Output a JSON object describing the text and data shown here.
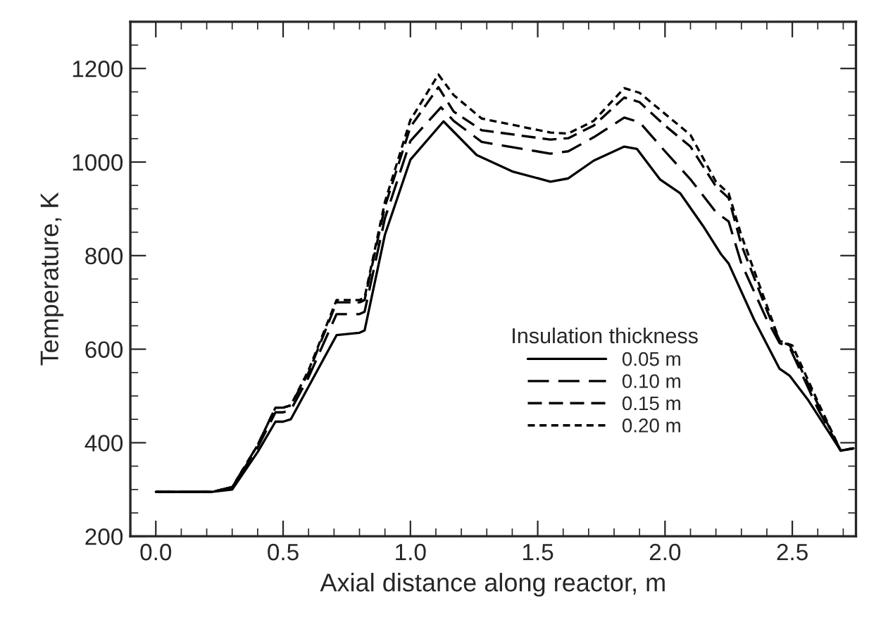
{
  "chart_data": {
    "type": "line",
    "xlabel": "Axial distance along reactor, m",
    "ylabel": "Temperature, K",
    "legend_title": "Insulation thickness",
    "legend": "right",
    "grid": false,
    "xlim": [
      -0.1,
      2.75
    ],
    "xticks": [
      {
        "value": 0,
        "label": "0.0"
      },
      0.5,
      {
        "value": 1,
        "label": "1.0"
      },
      1.5,
      {
        "value": 2,
        "label": "2.0"
      },
      2.5
    ],
    "ylim": [
      200,
      1300
    ],
    "yticks": [
      200,
      400,
      600,
      800,
      1000,
      1200
    ],
    "series": [
      {
        "name": "0.05 m",
        "color": "#000000",
        "line_style": "solid",
        "x": [
          0.0,
          0.22,
          0.3,
          0.4,
          0.47,
          0.5,
          0.53,
          0.6,
          0.71,
          0.8,
          0.82,
          0.9,
          1.0,
          1.13,
          1.26,
          1.4,
          1.55,
          1.62,
          1.72,
          1.84,
          1.89,
          1.98,
          2.06,
          2.15,
          2.22,
          2.25,
          2.35,
          2.45,
          2.49,
          2.56,
          2.69,
          2.74
        ],
        "values": [
          295,
          295,
          300,
          380,
          445,
          445,
          450,
          520,
          630,
          635,
          640,
          845,
          1005,
          1087,
          1015,
          980,
          958,
          965,
          1003,
          1033,
          1028,
          963,
          933,
          863,
          803,
          783,
          663,
          558,
          543,
          493,
          383,
          388
        ]
      },
      {
        "name": "0.10 m",
        "color": "#000000",
        "line_style": "dashed",
        "x": [
          0.0,
          0.22,
          0.3,
          0.4,
          0.47,
          0.5,
          0.53,
          0.6,
          0.71,
          0.8,
          0.82,
          0.9,
          1.0,
          1.12,
          1.17,
          1.28,
          1.55,
          1.62,
          1.72,
          1.84,
          1.9,
          2.0,
          2.1,
          2.2,
          2.25,
          2.3,
          2.4,
          2.45,
          2.49,
          2.6,
          2.69,
          2.74
        ],
        "values": [
          295,
          295,
          305,
          390,
          465,
          465,
          470,
          540,
          675,
          675,
          680,
          880,
          1045,
          1117,
          1088,
          1043,
          1018,
          1023,
          1053,
          1095,
          1085,
          1023,
          963,
          893,
          873,
          783,
          663,
          613,
          603,
          473,
          383,
          388
        ]
      },
      {
        "name": "0.15 m",
        "color": "#000000",
        "line_style": "dashed",
        "x": [
          0.0,
          0.22,
          0.3,
          0.4,
          0.47,
          0.5,
          0.53,
          0.6,
          0.71,
          0.8,
          0.82,
          0.9,
          1.0,
          1.11,
          1.17,
          1.28,
          1.55,
          1.62,
          1.72,
          1.84,
          1.9,
          2.0,
          2.1,
          2.2,
          2.25,
          2.3,
          2.4,
          2.45,
          2.49,
          2.6,
          2.69,
          2.74
        ],
        "values": [
          295,
          295,
          305,
          395,
          475,
          475,
          480,
          550,
          700,
          700,
          705,
          905,
          1075,
          1160,
          1108,
          1068,
          1048,
          1051,
          1078,
          1138,
          1128,
          1078,
          1033,
          948,
          923,
          823,
          683,
          618,
          608,
          483,
          383,
          388
        ]
      },
      {
        "name": "0.20 m",
        "color": "#000000",
        "line_style": "dashed",
        "x": [
          0.0,
          0.22,
          0.3,
          0.4,
          0.47,
          0.5,
          0.53,
          0.6,
          0.71,
          0.8,
          0.82,
          0.9,
          1.0,
          1.11,
          1.17,
          1.28,
          1.55,
          1.62,
          1.72,
          1.84,
          1.9,
          2.0,
          2.1,
          2.2,
          2.25,
          2.3,
          2.4,
          2.45,
          2.5,
          2.6,
          2.69,
          2.74
        ],
        "values": [
          295,
          295,
          305,
          395,
          475,
          475,
          480,
          555,
          705,
          705,
          710,
          915,
          1090,
          1187,
          1143,
          1093,
          1063,
          1061,
          1088,
          1158,
          1148,
          1103,
          1058,
          958,
          933,
          843,
          693,
          618,
          608,
          488,
          383,
          388
        ]
      }
    ]
  }
}
